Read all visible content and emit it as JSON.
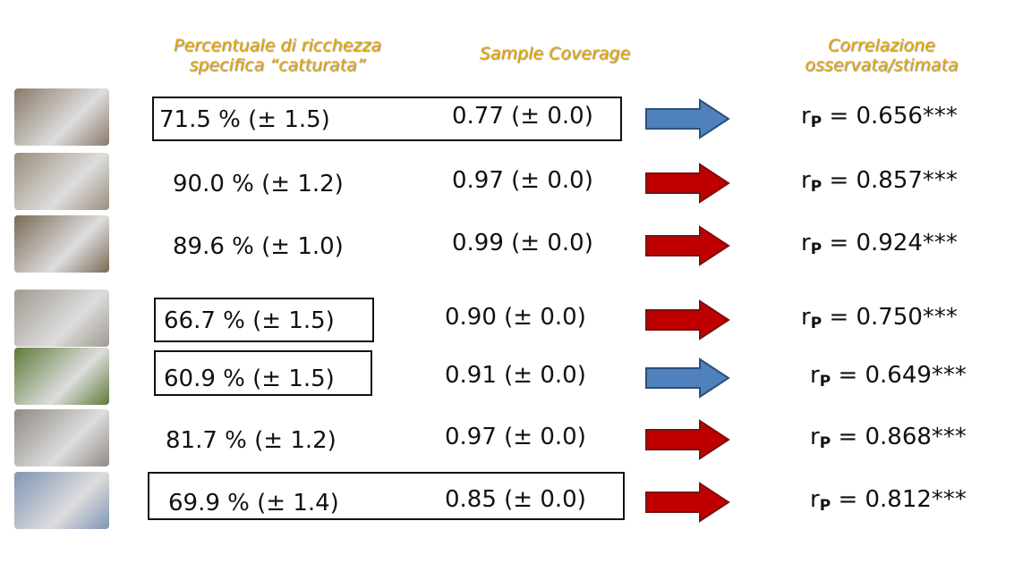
{
  "headers": {
    "richness": [
      "Percentuale di ricchezza",
      "specifica “catturata”"
    ],
    "coverage": "Sample Coverage",
    "correlation": [
      "Correlazione",
      "osservata/stimata"
    ]
  },
  "corr_symbol": "r",
  "corr_subscript": "P",
  "rows": [
    {
      "richness": "71.5 % (± 1.5)",
      "coverage": "0.77 (± 0.0)",
      "correlation": "= 0.656***"
    },
    {
      "richness": "90.0 % (± 1.2)",
      "coverage": "0.97 (± 0.0)",
      "correlation": "= 0.857***"
    },
    {
      "richness": "89.6 % (± 1.0)",
      "coverage": "0.99 (± 0.0)",
      "correlation": "= 0.924***"
    },
    {
      "richness": "66.7 % (± 1.5)",
      "coverage": "0.90 (± 0.0)",
      "correlation": "= 0.750***"
    },
    {
      "richness": "60.9 % (± 1.5)",
      "coverage": "0.91 (± 0.0)",
      "correlation": "= 0.649***"
    },
    {
      "richness": "81.7 % (± 1.2)",
      "coverage": "0.97 (± 0.0)",
      "correlation": "= 0.868***"
    },
    {
      "richness": "69.9 % (± 1.4)",
      "coverage": "0.85 (± 0.0)",
      "correlation": "= 0.812***"
    }
  ]
}
